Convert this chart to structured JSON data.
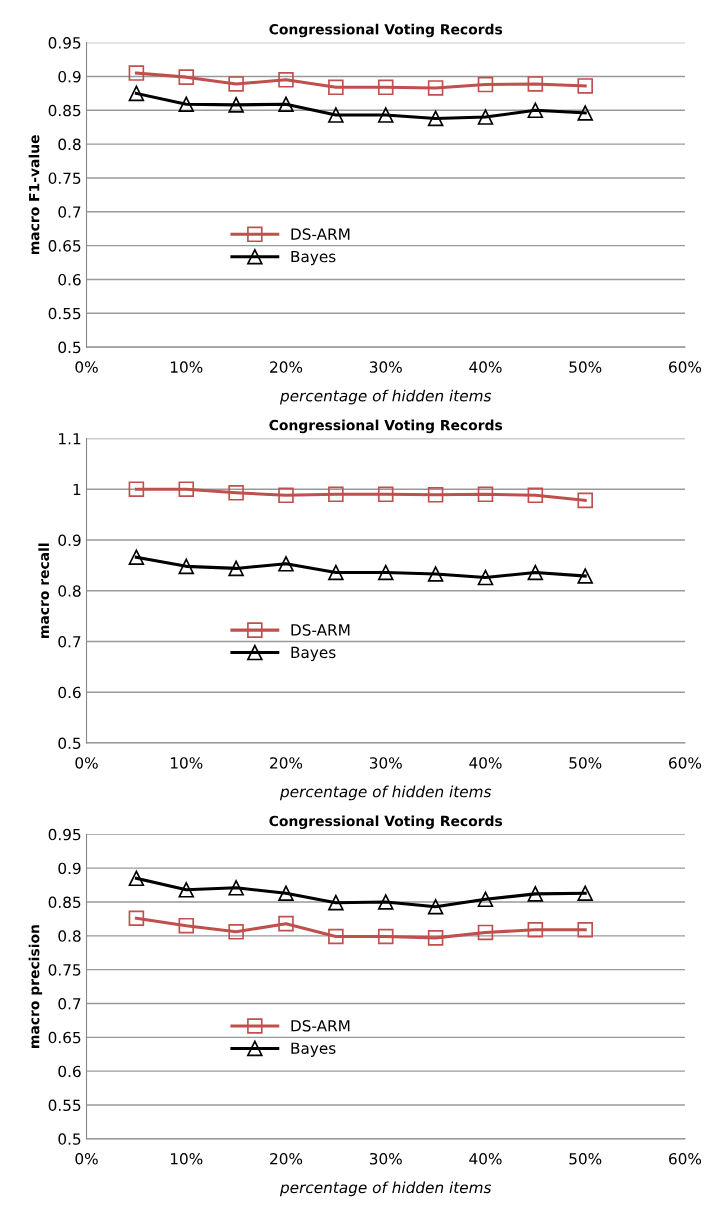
{
  "chart_data": [
    {
      "type": "line",
      "title": "Congressional Voting Records",
      "xlabel": "percentage of hidden items",
      "ylabel": "macro F1-value",
      "x": [
        0.05,
        0.1,
        0.15,
        0.2,
        0.25,
        0.3,
        0.35,
        0.4,
        0.45,
        0.5
      ],
      "series": [
        {
          "name": "DS-ARM",
          "color": "#c0504d",
          "marker": "square",
          "values": [
            0.905,
            0.899,
            0.889,
            0.895,
            0.884,
            0.884,
            0.883,
            0.888,
            0.889,
            0.886
          ]
        },
        {
          "name": "Bayes",
          "color": "#000000",
          "marker": "triangle",
          "values": [
            0.875,
            0.859,
            0.858,
            0.859,
            0.843,
            0.843,
            0.838,
            0.84,
            0.85,
            0.846
          ]
        }
      ],
      "xlim": [
        0,
        0.6
      ],
      "xticks": [
        {
          "value": 0,
          "label": "0%"
        },
        {
          "value": 0.1,
          "label": "10%"
        },
        {
          "value": 0.2,
          "label": "20%"
        },
        {
          "value": 0.3,
          "label": "30%"
        },
        {
          "value": 0.4,
          "label": "40%"
        },
        {
          "value": 0.5,
          "label": "50%"
        },
        {
          "value": 0.6,
          "label": "60%"
        }
      ],
      "ylim": [
        0.5,
        0.95
      ],
      "yticks": [
        0.5,
        0.55,
        0.6,
        0.65,
        0.7,
        0.75,
        0.8,
        0.85,
        0.9,
        0.95
      ],
      "grid": "y",
      "legend": "center left"
    },
    {
      "type": "line",
      "title": "Congressional Voting Records",
      "xlabel": "percentage of hidden items",
      "ylabel": "macro recall",
      "x": [
        0.05,
        0.1,
        0.15,
        0.2,
        0.25,
        0.3,
        0.35,
        0.4,
        0.45,
        0.5
      ],
      "series": [
        {
          "name": "DS-ARM",
          "color": "#c0504d",
          "marker": "square",
          "values": [
            1.0,
            1.0,
            0.993,
            0.988,
            0.99,
            0.99,
            0.989,
            0.99,
            0.988,
            0.978
          ]
        },
        {
          "name": "Bayes",
          "color": "#000000",
          "marker": "triangle",
          "values": [
            0.866,
            0.848,
            0.844,
            0.853,
            0.836,
            0.836,
            0.833,
            0.826,
            0.836,
            0.829
          ]
        }
      ],
      "xlim": [
        0,
        0.6
      ],
      "xticks": [
        {
          "value": 0,
          "label": "0%"
        },
        {
          "value": 0.1,
          "label": "10%"
        },
        {
          "value": 0.2,
          "label": "20%"
        },
        {
          "value": 0.3,
          "label": "30%"
        },
        {
          "value": 0.4,
          "label": "40%"
        },
        {
          "value": 0.5,
          "label": "50%"
        },
        {
          "value": 0.6,
          "label": "60%"
        }
      ],
      "ylim": [
        0.5,
        1.1
      ],
      "yticks": [
        0.5,
        0.6,
        0.7,
        0.8,
        0.9,
        1,
        1.1
      ],
      "grid": "y",
      "legend": "center left"
    },
    {
      "type": "line",
      "title": "Congressional Voting Records",
      "xlabel": "percentage of hidden items",
      "ylabel": "macro precision",
      "x": [
        0.05,
        0.1,
        0.15,
        0.2,
        0.25,
        0.3,
        0.35,
        0.4,
        0.45,
        0.5
      ],
      "series": [
        {
          "name": "DS-ARM",
          "color": "#c0504d",
          "marker": "square",
          "values": [
            0.826,
            0.815,
            0.806,
            0.818,
            0.799,
            0.799,
            0.797,
            0.805,
            0.809,
            0.809
          ]
        },
        {
          "name": "Bayes",
          "color": "#000000",
          "marker": "triangle",
          "values": [
            0.885,
            0.868,
            0.871,
            0.863,
            0.849,
            0.85,
            0.843,
            0.854,
            0.862,
            0.863
          ]
        }
      ],
      "xlim": [
        0,
        0.6
      ],
      "xticks": [
        {
          "value": 0,
          "label": "0%"
        },
        {
          "value": 0.1,
          "label": "10%"
        },
        {
          "value": 0.2,
          "label": "20%"
        },
        {
          "value": 0.3,
          "label": "30%"
        },
        {
          "value": 0.4,
          "label": "40%"
        },
        {
          "value": 0.5,
          "label": "50%"
        },
        {
          "value": 0.6,
          "label": "60%"
        }
      ],
      "ylim": [
        0.5,
        0.95
      ],
      "yticks": [
        0.5,
        0.55,
        0.6,
        0.65,
        0.7,
        0.75,
        0.8,
        0.85,
        0.9,
        0.95
      ],
      "grid": "y",
      "legend": "center left"
    }
  ]
}
